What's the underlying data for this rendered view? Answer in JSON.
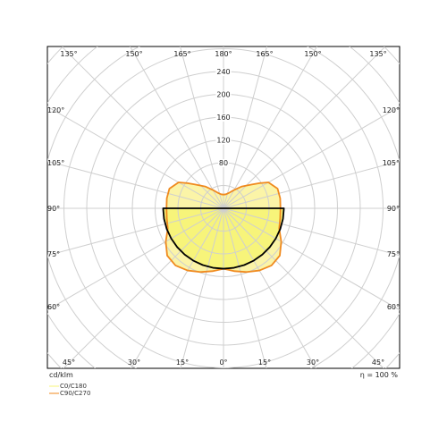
{
  "chart_data": {
    "type": "polar",
    "radial_ticks": [
      80,
      120,
      160,
      200,
      240
    ],
    "angle_labels_top": [
      "135°",
      "150°",
      "165°",
      "180°",
      "165°",
      "150°",
      "135°"
    ],
    "angle_labels_bottom": [
      "45°",
      "30°",
      "15°",
      "0°",
      "15°",
      "30°",
      "45°"
    ],
    "angle_labels_left": [
      "120°",
      "105°",
      "90°",
      "75°",
      "60°"
    ],
    "angle_labels_right": [
      "120°",
      "105°",
      "90°",
      "75°",
      "60°"
    ],
    "unit_label": "cd/klm",
    "efficiency_label": "η = 100 %",
    "series": [
      {
        "name": "C0/C180",
        "color": "#000000",
        "fill": "#f7f47a",
        "angles": [
          0,
          10,
          20,
          30,
          40,
          50,
          60,
          70,
          80,
          90
        ],
        "values": [
          106,
          106,
          106,
          106,
          106,
          106,
          106,
          106,
          106,
          106
        ]
      },
      {
        "name": "C90/C270",
        "color": "#f08a1e",
        "fill": "#fbf3a2",
        "angles": [
          0,
          10,
          20,
          30,
          40,
          50,
          60,
          70,
          80,
          90,
          100,
          110,
          120,
          125,
          130,
          140,
          150,
          160,
          170,
          180
        ],
        "values": [
          106,
          112,
          119,
          126,
          131,
          129,
          117,
          104,
          101,
          100,
          101,
          101,
          91,
          77,
          65,
          50,
          37,
          29,
          25,
          24
        ]
      }
    ]
  }
}
